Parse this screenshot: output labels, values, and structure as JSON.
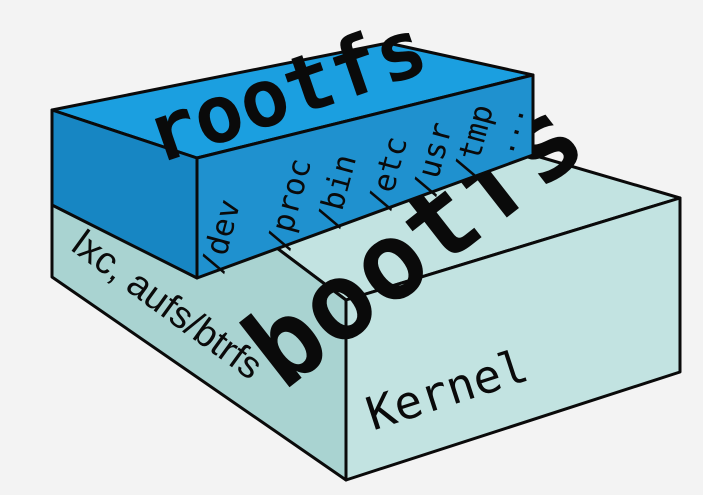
{
  "colors": {
    "background": "#f3f3f3",
    "bootfs_face": "#c2e3e1",
    "bootfs_side": "#a9d3d1",
    "rootfs_top": "#1b9fe0",
    "rootfs_front": "#1786c3",
    "rootfs_side": "#1f91cf",
    "outline": "#0a0a0a"
  },
  "diagram": {
    "rootfs": {
      "top_label": "rootfs",
      "directories": [
        "/dev",
        "/proc",
        "/bin",
        "/etc",
        "/usr",
        "/tmp",
        "..."
      ]
    },
    "bootfs": {
      "top_label": "bootfs",
      "side_label": "lxc, aufs/btrfs",
      "front_label": "Kernel"
    }
  }
}
